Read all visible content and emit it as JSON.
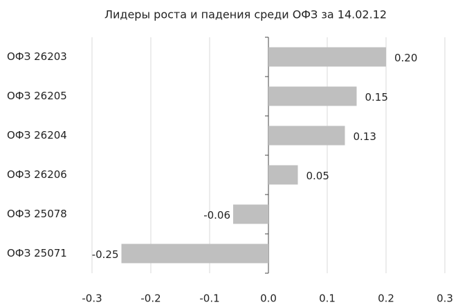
{
  "chart_data": {
    "type": "barh",
    "title": "Лидеры роста и падения среди ОФЗ за 14.02.12",
    "categories": [
      "ОФЗ 26203",
      "ОФЗ 26205",
      "ОФЗ 26204",
      "ОФЗ 26206",
      "ОФЗ 25078",
      "ОФЗ 25071"
    ],
    "values": [
      0.2,
      0.15,
      0.13,
      0.05,
      -0.06,
      -0.25
    ],
    "value_labels": [
      "0.20",
      "0.15",
      "0.13",
      "0.05",
      "-0.06",
      "-0.25"
    ],
    "color": "#bfbfbf",
    "xlim": [
      -0.3,
      0.3
    ],
    "xticks": [
      -0.3,
      -0.2,
      -0.1,
      {
        "value": 0,
        "label": "0.0"
      },
      0.1,
      0.2,
      0.3
    ],
    "grid": true
  }
}
